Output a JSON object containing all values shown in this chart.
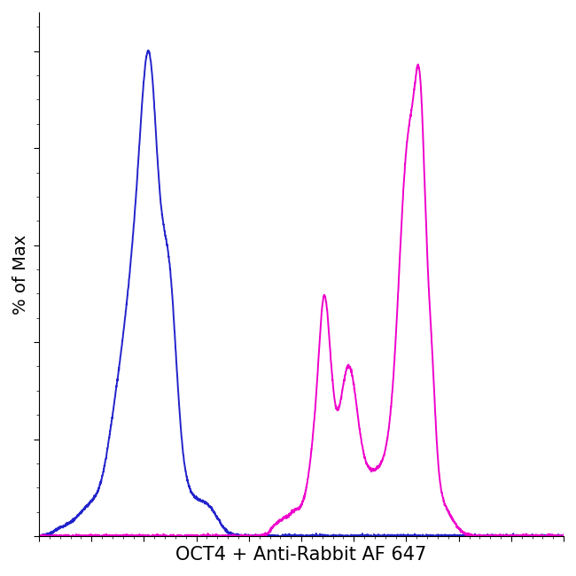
{
  "title": "",
  "xlabel": "OCT4 + Anti-Rabbit AF 647",
  "ylabel": "% of Max",
  "blue_color": "#2222CC",
  "magenta_color": "#EE00CC",
  "background_color": "#FFFFFF",
  "xlim": [
    0,
    1000
  ],
  "ylim": [
    0,
    108
  ],
  "linewidth": 1.4,
  "xlabel_fontsize": 15,
  "ylabel_fontsize": 14
}
